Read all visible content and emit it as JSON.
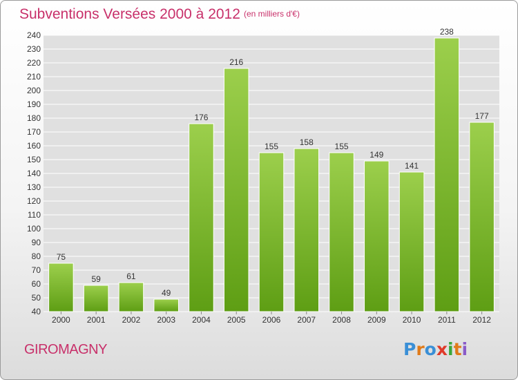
{
  "header": {
    "title": "Subventions Versées 2000 à 2012",
    "subtitle": "(en milliers d'€)"
  },
  "footer": {
    "commune": "GIROMAGNY",
    "logo_text": "Proxiti",
    "logo_colors": [
      "#3a8fd6",
      "#e07b1a",
      "#3a8fd6",
      "#e03a2a",
      "#3aa83a",
      "#e07b1a",
      "#8a5ac8"
    ]
  },
  "colors": {
    "accent": "#c8306a",
    "bar_light": "#9ccf4c",
    "bar_dark": "#5e9e14",
    "grid": "#ffffff",
    "plot_background": "#e0e0e0"
  },
  "chart_data": {
    "type": "bar",
    "title": "Subventions Versées 2000 à 2012",
    "subtitle": "(en milliers d'€)",
    "xlabel": "",
    "ylabel": "",
    "categories": [
      "2000",
      "2001",
      "2002",
      "2003",
      "2004",
      "2005",
      "2006",
      "2007",
      "2008",
      "2009",
      "2010",
      "2011",
      "2012"
    ],
    "values": [
      75,
      59,
      61,
      49,
      176,
      216,
      155,
      158,
      155,
      149,
      141,
      238,
      177
    ],
    "ylim": [
      40,
      240
    ],
    "ytick_step": 10,
    "grid": true,
    "legend": "none",
    "data_labels": true
  }
}
